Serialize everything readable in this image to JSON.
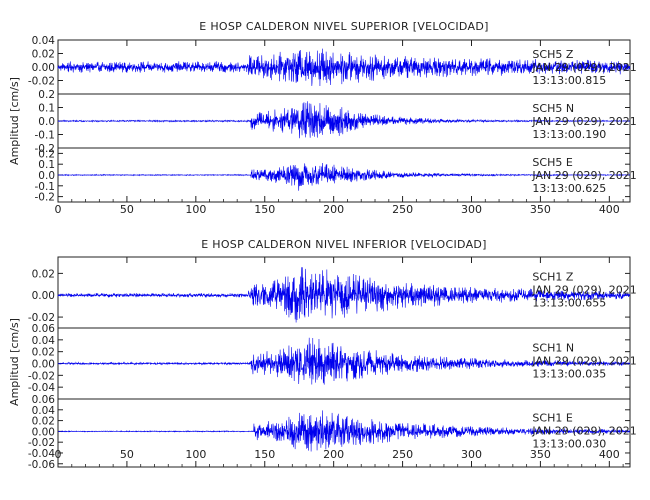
{
  "chart_data": [
    {
      "type": "line",
      "title": "E HOSP CALDERON NIVEL SUPERIOR [VELOCIDAD]",
      "ylabel": "Amplitud [cm/s]",
      "xlabel": "",
      "xlim": [
        0,
        415
      ],
      "xticks": [
        "0",
        "50",
        "100",
        "150",
        "200",
        "250",
        "300",
        "350",
        "400"
      ],
      "grid": false,
      "traces": [
        {
          "station": "SCH5",
          "component": "Z",
          "date": "JAN 29 (029), 2021",
          "time": "13:13:00.815",
          "ylim": [
            -0.04,
            0.04
          ],
          "yticks": [
            "-0.02",
            "0.00",
            "0.02",
            "0.04"
          ],
          "pre_amp": 0.009,
          "peak_amp": 0.035,
          "onset": 138,
          "peak_t": 178,
          "decay": 70,
          "coda_amp": 0.01
        },
        {
          "station": "SCH5",
          "component": "N",
          "date": "JAN 29 (029), 2021",
          "time": "13:13:00.190",
          "ylim": [
            -0.2,
            0.2
          ],
          "yticks": [
            "-0.2",
            "-0.1",
            "0.0",
            "0.1",
            "0.2"
          ],
          "pre_amp": 0.006,
          "peak_amp": 0.19,
          "onset": 140,
          "peak_t": 185,
          "decay": 35,
          "coda_amp": 0.004
        },
        {
          "station": "SCH5",
          "component": "E",
          "date": "JAN 29 (029), 2021",
          "time": "13:13:00.625",
          "ylim": [
            -0.25,
            0.25
          ],
          "yticks": [
            "-0.2",
            "-0.1",
            "0.0",
            "0.1",
            "0.2"
          ],
          "pre_amp": 0.005,
          "peak_amp": 0.17,
          "onset": 140,
          "peak_t": 178,
          "decay": 40,
          "coda_amp": 0.004
        }
      ]
    },
    {
      "type": "line",
      "title": "E HOSP CALDERON NIVEL INFERIOR [VELOCIDAD]",
      "ylabel": "Amplitud [cm/s]",
      "xlabel": "",
      "xlim": [
        0,
        415
      ],
      "xticks": [
        "0",
        "50",
        "100",
        "150",
        "200",
        "250",
        "300",
        "350",
        "400"
      ],
      "grid": false,
      "traces": [
        {
          "station": "SCH1",
          "component": "Z",
          "date": "JAN 29 (029), 2021",
          "time": "13:13:00.655",
          "ylim": [
            -0.03,
            0.035
          ],
          "yticks": [
            "-0.02",
            "0.00",
            "0.02"
          ],
          "pre_amp": 0.002,
          "peak_amp": 0.03,
          "onset": 138,
          "peak_t": 178,
          "decay": 75,
          "coda_amp": 0.003
        },
        {
          "station": "SCH1",
          "component": "N",
          "date": "JAN 29 (029), 2021",
          "time": "13:13:00.035",
          "ylim": [
            -0.06,
            0.06
          ],
          "yticks": [
            "-0.04",
            "-0.02",
            "0.00",
            "0.02",
            "0.04",
            "0.06"
          ],
          "pre_amp": 0.002,
          "peak_amp": 0.05,
          "onset": 140,
          "peak_t": 180,
          "decay": 60,
          "coda_amp": 0.003
        },
        {
          "station": "SCH1",
          "component": "E",
          "date": "JAN 29 (029), 2021",
          "time": "13:13:00.030",
          "ylim": [
            -0.066,
            0.06
          ],
          "yticks": [
            "-0.06",
            "-0.04",
            "-0.02",
            "0.00",
            "0.02",
            "0.04",
            "0.06"
          ],
          "pre_amp": 0.001,
          "peak_amp": 0.05,
          "onset": 142,
          "peak_t": 180,
          "decay": 65,
          "coda_amp": 0.003
        }
      ]
    }
  ],
  "colors": {
    "trace": "#0000ee",
    "axis": "#222222",
    "background": "#ffffff"
  }
}
